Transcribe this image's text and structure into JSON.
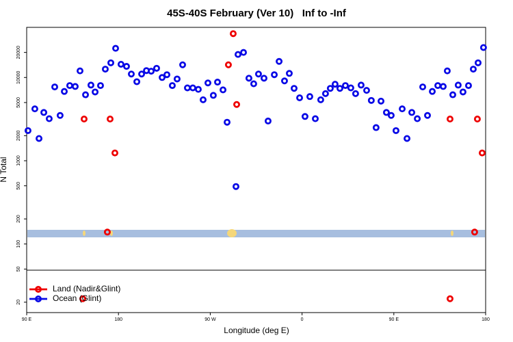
{
  "chart_data": {
    "type": "scatter",
    "title": "45S-40S February (Ver 10)   Inf to -Inf",
    "x_label": "Longitude (deg E)",
    "y_label": "N Total",
    "xlim": [
      90,
      540
    ],
    "ylim": [
      15,
      40000
    ],
    "log_y": true,
    "legend": "bottom left",
    "xticks": [
      {
        "value": 90,
        "label": "90 E"
      },
      {
        "value": 180,
        "label": "180"
      },
      {
        "value": 270,
        "label": "90 W"
      },
      {
        "value": 360,
        "label": "0"
      },
      {
        "value": 450,
        "label": "90 E"
      },
      {
        "value": 540,
        "label": "180"
      }
    ],
    "yticks": [
      20,
      50,
      100,
      200,
      500,
      1000,
      2000,
      5000,
      10000,
      20000
    ],
    "series": [
      {
        "name": "Land (Nadir&Glint)",
        "color": "#ee0000",
        "x": [
          146.3,
          169.1,
          171.8,
          176.5,
          287.8,
          292.5,
          295.9,
          505.1,
          529.2,
          531.9,
          536.6,
          145.0,
          505.1
        ],
        "values": [
          3170,
          139,
          3170,
          1240,
          14200,
          33600,
          4740,
          3170,
          139,
          3170,
          1240,
          22,
          22
        ]
      },
      {
        "name": "Ocean (Glint)",
        "color": "#0a0ae6",
        "x": [
          91.3,
          98.0,
          102.1,
          106.8,
          112.1,
          117.5,
          122.8,
          126.9,
          132.2,
          137.6,
          142.3,
          147.7,
          153.0,
          157.1,
          162.4,
          167.1,
          172.5,
          177.2,
          182.5,
          187.9,
          192.6,
          198.0,
          202.7,
          207.4,
          212.1,
          217.4,
          222.8,
          227.5,
          232.8,
          237.5,
          242.9,
          247.6,
          252.9,
          258.3,
          263.0,
          267.7,
          273.0,
          277.1,
          282.5,
          286.5,
          295.2,
          297.2,
          302.6,
          307.9,
          312.6,
          317.3,
          322.7,
          326.7,
          332.8,
          337.5,
          342.8,
          347.5,
          352.2,
          357.6,
          362.9,
          367.6,
          373.0,
          378.3,
          383.0,
          387.7,
          392.4,
          397.1,
          402.5,
          407.8,
          412.5,
          417.9,
          423.3,
          427.9,
          432.6,
          437.4,
          442.7,
          447.4,
          452.1,
          458.2,
          462.9,
          467.6,
          473.0,
          478.3,
          483.0,
          487.7,
          493.1,
          498.4,
          502.4,
          507.8,
          513.1,
          517.8,
          523.2,
          527.9,
          532.6,
          537.9
        ],
        "values": [
          2300,
          4200,
          1850,
          3800,
          3200,
          7700,
          3500,
          6800,
          8000,
          7800,
          12000,
          6200,
          8100,
          6700,
          8000,
          12600,
          15000,
          22400,
          14400,
          13600,
          11000,
          8900,
          11000,
          12100,
          11900,
          12900,
          10000,
          10800,
          8000,
          9600,
          14200,
          7500,
          7500,
          7200,
          5400,
          8600,
          6100,
          8800,
          7100,
          2900,
          490,
          18900,
          20000,
          9800,
          8400,
          11000,
          9800,
          3000,
          10800,
          15600,
          9100,
          11200,
          7400,
          5700,
          3400,
          5900,
          3200,
          5400,
          6400,
          7400,
          8300,
          7400,
          8000,
          7500,
          6400,
          8100,
          7000,
          5300,
          2500,
          5200,
          3800,
          3500,
          2300,
          4200,
          1850,
          3800,
          3200,
          7700,
          3500,
          6800,
          8000,
          7800,
          12000,
          6200,
          8100,
          6700,
          8000,
          12600,
          15000,
          22900
        ]
      }
    ]
  }
}
